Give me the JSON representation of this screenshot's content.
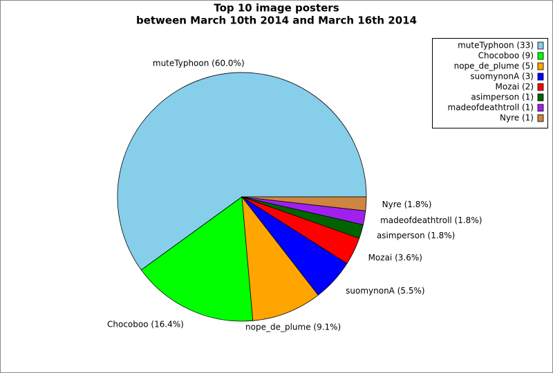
{
  "chart_data": {
    "type": "pie",
    "title": "Top 10 image posters",
    "subtitle": "between March 10th 2014 and March 16th 2014",
    "categories": [
      "muteTyphoon",
      "Chocoboo",
      "nope_de_plume",
      "suomynonA",
      "Mozai",
      "asimperson",
      "madeofdeathtroll",
      "Nyre"
    ],
    "values": [
      60.0,
      16.4,
      9.1,
      5.5,
      3.6,
      1.8,
      1.8,
      1.8
    ],
    "value_labels": [
      "muteTyphoon (60.0%)",
      "Chocoboo (16.4%)",
      "nope_de_plume (9.1%)",
      "suomynonA (5.5%)",
      "Mozai (3.6%)",
      "asimperson (1.8%)",
      "madeofdeathtroll (1.8%)",
      "Nyre (1.8%)"
    ],
    "legend_labels": [
      "muteTyphoon (33)",
      "Chocoboo (9)",
      "nope_de_plume (5)",
      "suomynonA (3)",
      "Mozai (2)",
      "asimperson (1)",
      "madeofdeathtroll (1)",
      "Nyre (1)"
    ],
    "colors": [
      "#87ceeb",
      "#00ff00",
      "#ffa500",
      "#0000ff",
      "#ff0000",
      "#006400",
      "#a020f0",
      "#cd853f"
    ],
    "legend": "upper right"
  }
}
